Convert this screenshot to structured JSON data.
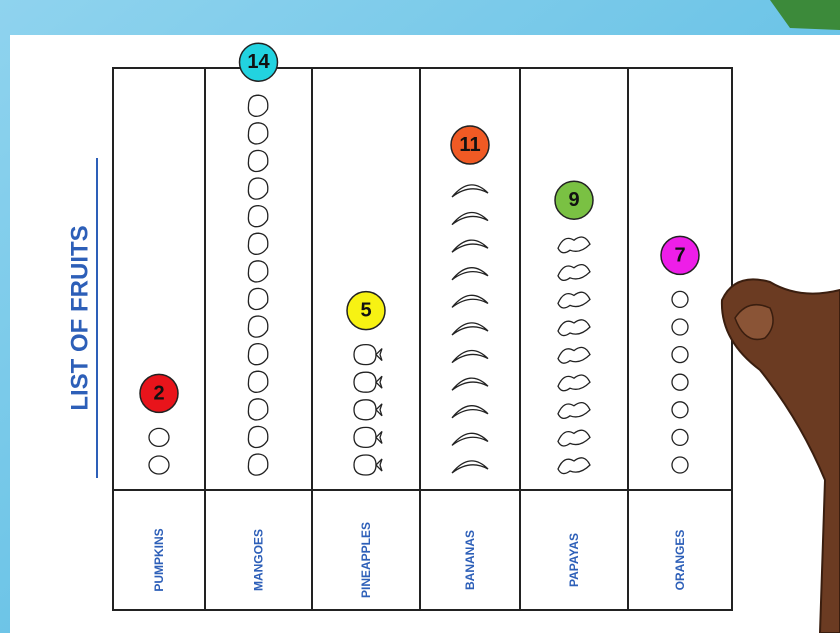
{
  "chart_data": {
    "type": "pictograph",
    "title": "LIST OF FRUITS",
    "categories": [
      "PUMPKINS",
      "MANGOES",
      "PINEAPPLES",
      "BANANAS",
      "PAPAYAS",
      "ORANGES"
    ],
    "values": [
      2,
      14,
      5,
      11,
      9,
      7
    ],
    "colors": [
      "#e8141b",
      "#22d3e0",
      "#f7f213",
      "#f05a24",
      "#7ac143",
      "#ee1ee8"
    ]
  }
}
